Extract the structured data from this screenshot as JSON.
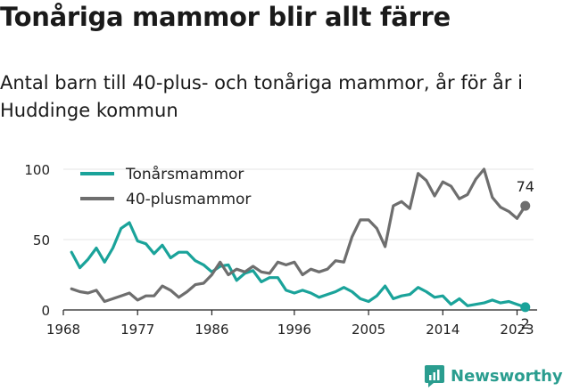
{
  "title": "Tonåriga mammor blir allt färre",
  "subtitle": "Antal barn till 40-plus- och tonåriga mammor, år för år i Huddinge kommun",
  "brand": {
    "name": "Newsworthy"
  },
  "colors": {
    "teen": "#1aa39a",
    "over40": "#6e6e6e",
    "axis": "#222222",
    "grid": "#e6e6e6"
  },
  "chart_data": {
    "type": "line",
    "x": [
      1969,
      1970,
      1971,
      1972,
      1973,
      1974,
      1975,
      1976,
      1977,
      1978,
      1979,
      1980,
      1981,
      1982,
      1983,
      1984,
      1985,
      1986,
      1987,
      1988,
      1989,
      1990,
      1991,
      1992,
      1993,
      1994,
      1995,
      1996,
      1997,
      1998,
      1999,
      2000,
      2001,
      2002,
      2003,
      2004,
      2005,
      2006,
      2007,
      2008,
      2009,
      2010,
      2011,
      2012,
      2013,
      2014,
      2015,
      2016,
      2017,
      2018,
      2019,
      2020,
      2021,
      2022,
      2023,
      2024
    ],
    "xticks": [
      "1968",
      "1977",
      "1986",
      "1996",
      "2005",
      "2014",
      "2023"
    ],
    "xtick_values": [
      1968,
      1977,
      1986,
      1996,
      2005,
      2014,
      2023
    ],
    "yticks": [
      "0",
      "50",
      "100"
    ],
    "ytick_values": [
      0,
      50,
      100
    ],
    "xlim": [
      1968,
      2025
    ],
    "ylim": [
      0,
      100
    ],
    "series": [
      {
        "name": "Tonårsmammor",
        "color": "#1aa39a",
        "values": [
          41,
          30,
          36,
          44,
          34,
          44,
          58,
          62,
          49,
          47,
          40,
          46,
          37,
          41,
          41,
          35,
          32,
          27,
          31,
          32,
          21,
          26,
          28,
          20,
          23,
          23,
          14,
          12,
          14,
          12,
          9,
          11,
          13,
          16,
          13,
          8,
          6,
          10,
          17,
          8,
          10,
          11,
          16,
          13,
          9,
          10,
          4,
          8,
          3,
          4,
          5,
          7,
          5,
          6,
          4,
          2
        ],
        "end_label": "2"
      },
      {
        "name": "40-plusmammor",
        "color": "#6e6e6e",
        "values": [
          15,
          13,
          12,
          14,
          6,
          8,
          10,
          12,
          7,
          10,
          10,
          17,
          14,
          9,
          13,
          18,
          19,
          25,
          34,
          25,
          29,
          27,
          31,
          27,
          26,
          34,
          32,
          34,
          25,
          29,
          27,
          29,
          35,
          34,
          52,
          64,
          64,
          58,
          45,
          74,
          77,
          72,
          97,
          92,
          81,
          91,
          88,
          79,
          82,
          93,
          100,
          80,
          73,
          70,
          65,
          74
        ],
        "end_label": "74"
      }
    ],
    "grid": true,
    "legend": "top-left"
  }
}
